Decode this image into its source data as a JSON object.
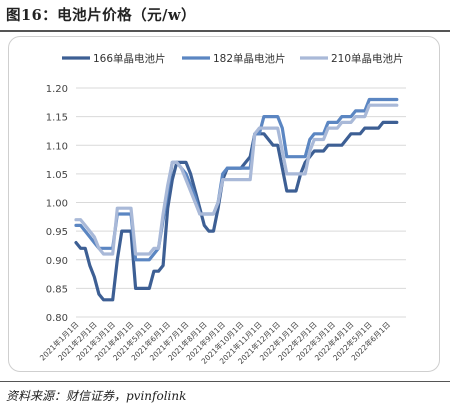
{
  "figure": {
    "title": "图16：电池片价格（元/w）",
    "source": "资料来源：财信证券，pvinfolink"
  },
  "chart_data": {
    "type": "line",
    "title": "",
    "xlabel": "",
    "ylabel": "",
    "ylim": [
      0.8,
      1.2
    ],
    "yticks": [
      "0.80",
      "0.85",
      "0.90",
      "0.95",
      "1.00",
      "1.05",
      "1.10",
      "1.15",
      "1.20"
    ],
    "grid": true,
    "legend_position": "top",
    "xtick_labels": [
      "2021年1月1日",
      "2021年2月1日",
      "2021年3月1日",
      "2021年4月1日",
      "2021年5月1日",
      "2021年6月1日",
      "2021年7月1日",
      "2021年8月1日",
      "2021年9月1日",
      "2021年10月1日",
      "2021年11月1日",
      "2021年12月1日",
      "2022年1月1日",
      "2022年2月1日",
      "2022年3月1日",
      "2022年4月1日",
      "2022年5月1日",
      "2022年6月1日"
    ],
    "x_range": [
      0,
      18
    ],
    "series": [
      {
        "name": "166单晶电池片",
        "color": "#3d5f94",
        "points": [
          [
            0.0,
            0.93
          ],
          [
            0.25,
            0.92
          ],
          [
            0.5,
            0.92
          ],
          [
            0.75,
            0.89
          ],
          [
            1.0,
            0.87
          ],
          [
            1.25,
            0.84
          ],
          [
            1.5,
            0.83
          ],
          [
            2.0,
            0.83
          ],
          [
            2.25,
            0.9
          ],
          [
            2.5,
            0.95
          ],
          [
            3.0,
            0.95
          ],
          [
            3.25,
            0.85
          ],
          [
            3.5,
            0.85
          ],
          [
            4.0,
            0.85
          ],
          [
            4.25,
            0.88
          ],
          [
            4.5,
            0.88
          ],
          [
            4.75,
            0.89
          ],
          [
            5.0,
            0.99
          ],
          [
            5.25,
            1.04
          ],
          [
            5.5,
            1.07
          ],
          [
            6.0,
            1.07
          ],
          [
            6.25,
            1.05
          ],
          [
            6.5,
            1.02
          ],
          [
            6.75,
            0.99
          ],
          [
            7.0,
            0.96
          ],
          [
            7.25,
            0.95
          ],
          [
            7.5,
            0.95
          ],
          [
            7.75,
            0.99
          ],
          [
            8.0,
            1.04
          ],
          [
            8.25,
            1.06
          ],
          [
            8.5,
            1.06
          ],
          [
            9.0,
            1.06
          ],
          [
            9.25,
            1.07
          ],
          [
            9.5,
            1.08
          ],
          [
            9.75,
            1.12
          ],
          [
            10.0,
            1.12
          ],
          [
            10.25,
            1.12
          ],
          [
            10.5,
            1.11
          ],
          [
            10.75,
            1.1
          ],
          [
            11.0,
            1.1
          ],
          [
            11.25,
            1.06
          ],
          [
            11.5,
            1.02
          ],
          [
            12.0,
            1.02
          ],
          [
            12.25,
            1.05
          ],
          [
            12.5,
            1.07
          ],
          [
            12.75,
            1.08
          ],
          [
            13.0,
            1.09
          ],
          [
            13.5,
            1.09
          ],
          [
            13.75,
            1.1
          ],
          [
            14.5,
            1.1
          ],
          [
            14.75,
            1.11
          ],
          [
            15.0,
            1.12
          ],
          [
            15.5,
            1.12
          ],
          [
            15.75,
            1.13
          ],
          [
            16.5,
            1.13
          ],
          [
            16.75,
            1.14
          ],
          [
            17.0,
            1.14
          ],
          [
            17.25,
            1.14
          ],
          [
            17.5,
            1.14
          ]
        ]
      },
      {
        "name": "182单晶电池片",
        "color": "#5b86c2",
        "points": [
          [
            0.0,
            0.96
          ],
          [
            0.25,
            0.96
          ],
          [
            0.5,
            0.95
          ],
          [
            0.75,
            0.94
          ],
          [
            1.0,
            0.93
          ],
          [
            1.25,
            0.92
          ],
          [
            1.5,
            0.92
          ],
          [
            2.0,
            0.92
          ],
          [
            2.25,
            0.98
          ],
          [
            3.0,
            0.98
          ],
          [
            3.25,
            0.9
          ],
          [
            4.0,
            0.9
          ],
          [
            4.25,
            0.91
          ],
          [
            4.5,
            0.92
          ],
          [
            4.75,
            0.97
          ],
          [
            5.0,
            1.02
          ],
          [
            5.25,
            1.07
          ],
          [
            5.5,
            1.07
          ],
          [
            5.75,
            1.06
          ],
          [
            6.0,
            1.05
          ],
          [
            6.5,
            1.01
          ],
          [
            6.75,
            0.98
          ],
          [
            7.0,
            0.98
          ],
          [
            7.5,
            0.98
          ],
          [
            7.75,
            1.0
          ],
          [
            8.0,
            1.05
          ],
          [
            8.25,
            1.06
          ],
          [
            9.5,
            1.06
          ],
          [
            9.75,
            1.12
          ],
          [
            10.0,
            1.12
          ],
          [
            10.25,
            1.15
          ],
          [
            11.0,
            1.15
          ],
          [
            11.25,
            1.13
          ],
          [
            11.5,
            1.08
          ],
          [
            12.0,
            1.08
          ],
          [
            12.5,
            1.08
          ],
          [
            12.75,
            1.11
          ],
          [
            13.0,
            1.12
          ],
          [
            13.5,
            1.12
          ],
          [
            13.75,
            1.14
          ],
          [
            14.25,
            1.14
          ],
          [
            14.5,
            1.15
          ],
          [
            15.0,
            1.15
          ],
          [
            15.25,
            1.16
          ],
          [
            15.75,
            1.16
          ],
          [
            16.0,
            1.18
          ],
          [
            16.75,
            1.18
          ],
          [
            17.0,
            1.18
          ],
          [
            17.5,
            1.18
          ]
        ]
      },
      {
        "name": "210单晶电池片",
        "color": "#a9b9d8",
        "points": [
          [
            0.0,
            0.97
          ],
          [
            0.25,
            0.97
          ],
          [
            0.5,
            0.96
          ],
          [
            0.75,
            0.95
          ],
          [
            1.0,
            0.94
          ],
          [
            1.25,
            0.92
          ],
          [
            1.5,
            0.91
          ],
          [
            2.0,
            0.91
          ],
          [
            2.25,
            0.99
          ],
          [
            3.0,
            0.99
          ],
          [
            3.25,
            0.91
          ],
          [
            4.0,
            0.91
          ],
          [
            4.25,
            0.92
          ],
          [
            4.5,
            0.92
          ],
          [
            4.75,
            0.98
          ],
          [
            5.0,
            1.03
          ],
          [
            5.25,
            1.07
          ],
          [
            5.5,
            1.07
          ],
          [
            5.75,
            1.06
          ],
          [
            6.0,
            1.04
          ],
          [
            6.5,
            1.0
          ],
          [
            6.75,
            0.98
          ],
          [
            7.0,
            0.98
          ],
          [
            7.5,
            0.98
          ],
          [
            7.75,
            1.0
          ],
          [
            8.0,
            1.04
          ],
          [
            8.25,
            1.04
          ],
          [
            9.5,
            1.04
          ],
          [
            9.75,
            1.12
          ],
          [
            10.0,
            1.13
          ],
          [
            10.25,
            1.13
          ],
          [
            11.0,
            1.13
          ],
          [
            11.25,
            1.09
          ],
          [
            11.5,
            1.05
          ],
          [
            12.0,
            1.05
          ],
          [
            12.5,
            1.05
          ],
          [
            12.75,
            1.09
          ],
          [
            13.0,
            1.11
          ],
          [
            13.5,
            1.11
          ],
          [
            13.75,
            1.13
          ],
          [
            14.25,
            1.13
          ],
          [
            14.5,
            1.14
          ],
          [
            15.0,
            1.14
          ],
          [
            15.25,
            1.15
          ],
          [
            15.75,
            1.15
          ],
          [
            16.0,
            1.17
          ],
          [
            16.75,
            1.17
          ],
          [
            17.0,
            1.17
          ],
          [
            17.5,
            1.17
          ]
        ]
      }
    ]
  }
}
